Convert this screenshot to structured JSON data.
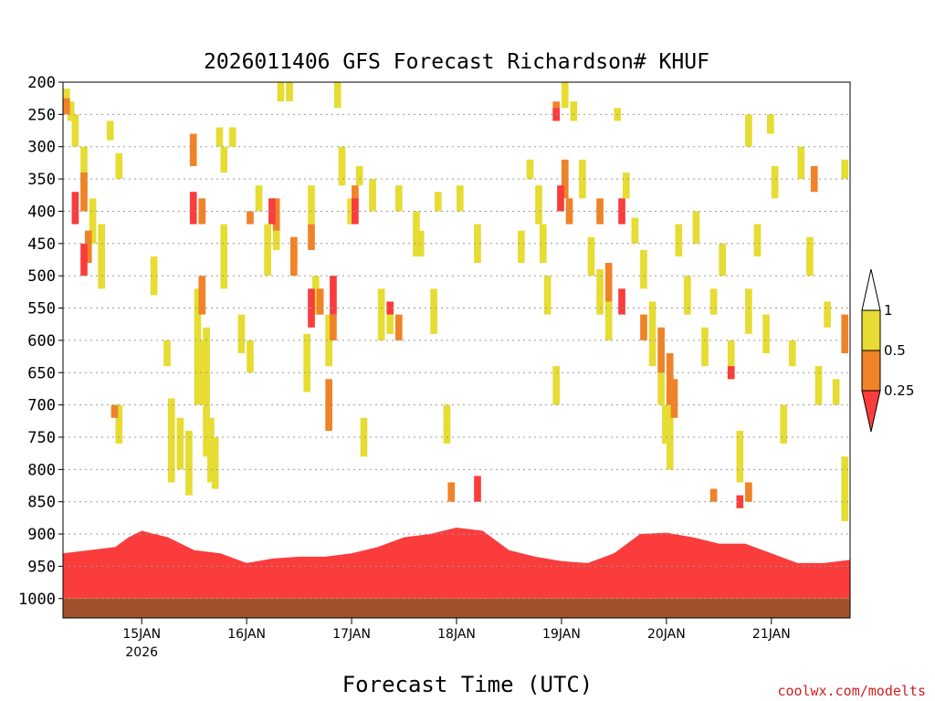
{
  "chart_data": {
    "type": "heatmap",
    "title": "2026011406 GFS Forecast Richardson# KHUF",
    "xlabel": "Forecast Time (UTC)",
    "ylabel": "",
    "credit": "coolwx.com/modelts",
    "x_unit": "hours since 2026-01-14 06 UTC",
    "xlim": [
      0,
      180
    ],
    "ylim_hpa": [
      1000,
      200
    ],
    "y_ticks": [
      200,
      250,
      300,
      350,
      400,
      450,
      500,
      550,
      600,
      650,
      700,
      750,
      800,
      850,
      900,
      950,
      1000
    ],
    "y_tick_labels": [
      "200",
      "250",
      "300",
      "350",
      "400",
      "450",
      "500",
      "550",
      "600",
      "650",
      "700",
      "750",
      "800",
      "850",
      "900",
      "950",
      "1000"
    ],
    "x_ticks": [
      {
        "hour": 18,
        "label": "15JAN",
        "sublabel": "2026"
      },
      {
        "hour": 42,
        "label": "16JAN"
      },
      {
        "hour": 66,
        "label": "17JAN"
      },
      {
        "hour": 90,
        "label": "18JAN"
      },
      {
        "hour": 114,
        "label": "19JAN"
      },
      {
        "hour": 138,
        "label": "20JAN"
      },
      {
        "hour": 162,
        "label": "21JAN"
      }
    ],
    "legend": {
      "placement": "right",
      "levels": [
        {
          "label": "1"
        },
        {
          "label": "0.5"
        },
        {
          "label": "0.25"
        }
      ],
      "colors": {
        "gt1": "#ffffff",
        "0.5-1": "#e6dc32",
        "0.25-0.5": "#f08228",
        "lt0.25": "#fa3c3c"
      }
    },
    "colors": {
      "yellow": "#e6dc32",
      "orange": "#f08228",
      "red": "#fa3c3c",
      "ground": "#a0522d"
    },
    "series": [
      {
        "name": "Ri < 0.25 (boundary layer)",
        "category": "red",
        "boundary_layer_top_hpa": [
          [
            0,
            930
          ],
          [
            6,
            925
          ],
          [
            12,
            920
          ],
          [
            15,
            905
          ],
          [
            18,
            895
          ],
          [
            24,
            905
          ],
          [
            30,
            925
          ],
          [
            36,
            930
          ],
          [
            42,
            945
          ],
          [
            48,
            938
          ],
          [
            54,
            935
          ],
          [
            60,
            935
          ],
          [
            66,
            930
          ],
          [
            72,
            920
          ],
          [
            78,
            905
          ],
          [
            84,
            900
          ],
          [
            90,
            890
          ],
          [
            96,
            895
          ],
          [
            102,
            925
          ],
          [
            108,
            935
          ],
          [
            114,
            942
          ],
          [
            120,
            945
          ],
          [
            126,
            930
          ],
          [
            132,
            900
          ],
          [
            138,
            898
          ],
          [
            144,
            905
          ],
          [
            150,
            915
          ],
          [
            156,
            915
          ],
          [
            162,
            930
          ],
          [
            168,
            945
          ],
          [
            174,
            945
          ],
          [
            180,
            940
          ]
        ]
      },
      {
        "name": "Ri 0.5-1",
        "category": "yellow",
        "cells": [
          [
            0,
            210,
            240
          ],
          [
            1,
            230,
            260
          ],
          [
            2,
            250,
            300
          ],
          [
            4,
            300,
            380
          ],
          [
            6,
            380,
            450
          ],
          [
            8,
            420,
            520
          ],
          [
            10,
            260,
            290
          ],
          [
            12,
            310,
            350
          ],
          [
            12,
            700,
            760
          ],
          [
            20,
            470,
            530
          ],
          [
            23,
            600,
            640
          ],
          [
            24,
            690,
            820
          ],
          [
            26,
            720,
            800
          ],
          [
            28,
            740,
            840
          ],
          [
            30,
            520,
            700
          ],
          [
            31,
            600,
            700
          ],
          [
            32,
            580,
            780
          ],
          [
            33,
            720,
            820
          ],
          [
            34,
            750,
            830
          ],
          [
            35,
            270,
            300
          ],
          [
            36,
            300,
            340
          ],
          [
            36,
            420,
            520
          ],
          [
            38,
            270,
            300
          ],
          [
            40,
            560,
            620
          ],
          [
            42,
            600,
            650
          ],
          [
            44,
            360,
            400
          ],
          [
            46,
            420,
            500
          ],
          [
            48,
            400,
            460
          ],
          [
            49,
            200,
            230
          ],
          [
            51,
            200,
            230
          ],
          [
            52,
            440,
            480
          ],
          [
            55,
            590,
            680
          ],
          [
            56,
            360,
            420
          ],
          [
            57,
            500,
            560
          ],
          [
            58,
            520,
            560
          ],
          [
            60,
            560,
            640
          ],
          [
            60,
            690,
            740
          ],
          [
            62,
            200,
            240
          ],
          [
            63,
            300,
            360
          ],
          [
            65,
            380,
            420
          ],
          [
            67,
            330,
            360
          ],
          [
            68,
            720,
            780
          ],
          [
            70,
            350,
            400
          ],
          [
            72,
            520,
            600
          ],
          [
            74,
            540,
            590
          ],
          [
            76,
            360,
            400
          ],
          [
            80,
            400,
            470
          ],
          [
            81,
            430,
            470
          ],
          [
            84,
            520,
            590
          ],
          [
            85,
            370,
            400
          ],
          [
            87,
            700,
            760
          ],
          [
            90,
            360,
            400
          ],
          [
            94,
            420,
            480
          ],
          [
            104,
            430,
            480
          ],
          [
            106,
            320,
            350
          ],
          [
            108,
            360,
            420
          ],
          [
            109,
            420,
            480
          ],
          [
            110,
            500,
            560
          ],
          [
            112,
            640,
            700
          ],
          [
            114,
            200,
            240
          ],
          [
            116,
            230,
            260
          ],
          [
            118,
            320,
            380
          ],
          [
            120,
            440,
            500
          ],
          [
            122,
            490,
            560
          ],
          [
            124,
            540,
            600
          ],
          [
            126,
            240,
            260
          ],
          [
            128,
            340,
            380
          ],
          [
            130,
            410,
            450
          ],
          [
            132,
            460,
            520
          ],
          [
            134,
            540,
            640
          ],
          [
            136,
            640,
            700
          ],
          [
            137,
            700,
            760
          ],
          [
            138,
            680,
            800
          ],
          [
            140,
            420,
            470
          ],
          [
            142,
            500,
            560
          ],
          [
            144,
            400,
            450
          ],
          [
            146,
            580,
            640
          ],
          [
            148,
            520,
            560
          ],
          [
            150,
            450,
            500
          ],
          [
            152,
            600,
            660
          ],
          [
            154,
            740,
            820
          ],
          [
            156,
            250,
            300
          ],
          [
            156,
            520,
            590
          ],
          [
            158,
            420,
            470
          ],
          [
            160,
            560,
            620
          ],
          [
            161,
            250,
            280
          ],
          [
            162,
            330,
            380
          ],
          [
            164,
            700,
            760
          ],
          [
            166,
            600,
            640
          ],
          [
            168,
            300,
            350
          ],
          [
            170,
            440,
            500
          ],
          [
            172,
            640,
            700
          ],
          [
            174,
            540,
            580
          ],
          [
            176,
            660,
            700
          ],
          [
            178,
            320,
            350
          ],
          [
            178,
            780,
            880
          ]
        ]
      },
      {
        "name": "Ri 0.25-0.5",
        "category": "orange",
        "cells": [
          [
            0,
            225,
            250
          ],
          [
            4,
            340,
            400
          ],
          [
            5,
            430,
            480
          ],
          [
            11,
            700,
            720
          ],
          [
            29,
            280,
            330
          ],
          [
            31,
            380,
            420
          ],
          [
            31,
            500,
            560
          ],
          [
            42,
            400,
            420
          ],
          [
            48,
            380,
            430
          ],
          [
            52,
            440,
            500
          ],
          [
            56,
            420,
            460
          ],
          [
            58,
            520,
            560
          ],
          [
            60,
            660,
            740
          ],
          [
            61,
            560,
            600
          ],
          [
            66,
            360,
            400
          ],
          [
            76,
            560,
            600
          ],
          [
            88,
            820,
            850
          ],
          [
            112,
            230,
            260
          ],
          [
            114,
            320,
            380
          ],
          [
            115,
            380,
            420
          ],
          [
            122,
            380,
            420
          ],
          [
            124,
            480,
            540
          ],
          [
            132,
            560,
            600
          ],
          [
            136,
            580,
            650
          ],
          [
            138,
            620,
            700
          ],
          [
            139,
            660,
            720
          ],
          [
            148,
            830,
            850
          ],
          [
            156,
            820,
            850
          ],
          [
            171,
            330,
            370
          ],
          [
            178,
            560,
            620
          ]
        ]
      },
      {
        "name": "Ri < 0.25 (aloft)",
        "category": "red",
        "cells": [
          [
            2,
            370,
            420
          ],
          [
            4,
            450,
            500
          ],
          [
            29,
            370,
            420
          ],
          [
            47,
            380,
            420
          ],
          [
            56,
            520,
            580
          ],
          [
            61,
            500,
            560
          ],
          [
            66,
            380,
            420
          ],
          [
            74,
            540,
            560
          ],
          [
            94,
            810,
            850
          ],
          [
            112,
            240,
            260
          ],
          [
            113,
            360,
            400
          ],
          [
            127,
            380,
            420
          ],
          [
            127,
            520,
            560
          ],
          [
            152,
            640,
            660
          ],
          [
            154,
            840,
            860
          ]
        ]
      }
    ]
  }
}
